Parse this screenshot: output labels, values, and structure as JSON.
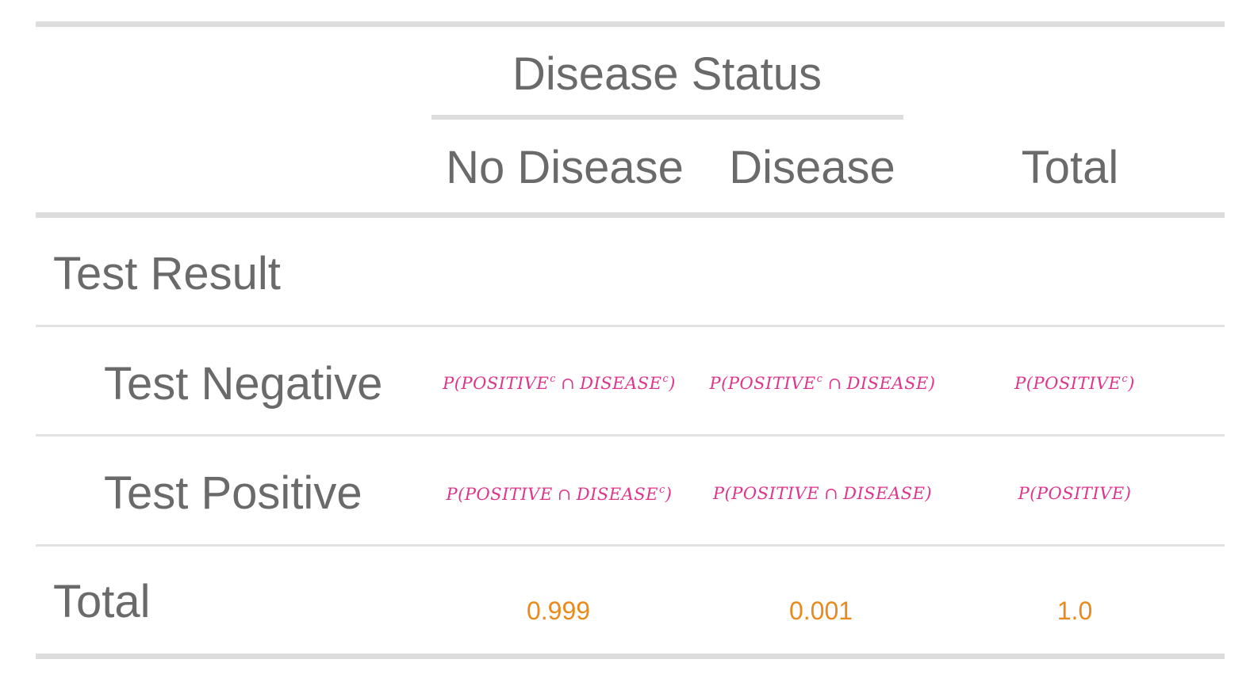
{
  "table": {
    "spanner": "Disease Status",
    "columns": [
      "No Disease",
      "Disease",
      "Total"
    ],
    "group_label": "Test Result",
    "rows": [
      {
        "label": "Test Negative",
        "cells": [
          {
            "prefix": "P(POSITIVE",
            "sup1": "c",
            "op": "∩",
            "event": "DISEASE",
            "sup2": "c",
            "suffix": ")"
          },
          {
            "prefix": "P(POSITIVE",
            "sup1": "c",
            "op": "∩",
            "event": "DISEASE",
            "sup2": "",
            "suffix": ")"
          },
          {
            "prefix": "P(POSITIVE",
            "sup1": "c",
            "op": "",
            "event": "",
            "sup2": "",
            "suffix": ")"
          }
        ]
      },
      {
        "label": "Test Positive",
        "cells": [
          {
            "prefix": "P(POSITIVE",
            "sup1": "",
            "op": "∩",
            "event": "DISEASE",
            "sup2": "c",
            "suffix": ")"
          },
          {
            "prefix": "P(POSITIVE",
            "sup1": "",
            "op": "∩",
            "event": "DISEASE",
            "sup2": "",
            "suffix": ")"
          },
          {
            "prefix": "P(POSITIVE",
            "sup1": "",
            "op": "",
            "event": "",
            "sup2": "",
            "suffix": ")"
          }
        ]
      }
    ],
    "total_row": {
      "label": "Total",
      "values": [
        "0.999",
        "0.001",
        "1.0"
      ]
    },
    "colors": {
      "text": "#6a6a6a",
      "rules": "#dddddd",
      "probability": "#e0348c",
      "totals": "#e98a1c"
    }
  }
}
